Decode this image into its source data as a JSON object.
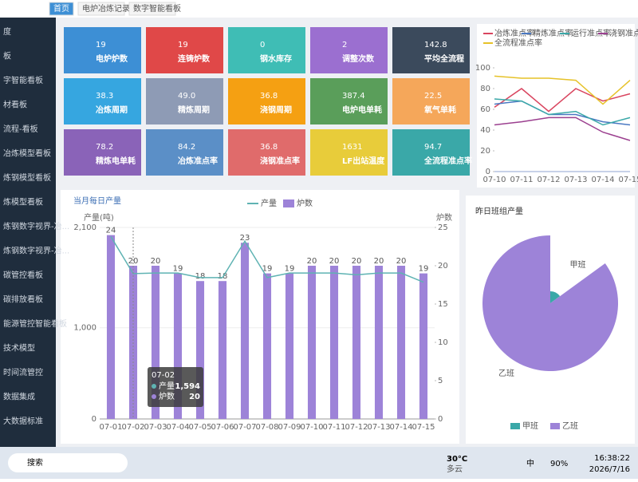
{
  "tabs": [
    "首页",
    "电炉冶炼记录",
    "数字智能看板"
  ],
  "sidebar": [
    "度",
    "板",
    "字智能看板",
    "材看板",
    "流程-看板",
    "冶炼模型看板",
    "炼钢模型看板",
    "炼模型看板",
    "炼钢数字视界-冶...",
    "炼钢数字视界-冶...",
    "碳管控看板",
    "碳排放看板",
    "能源管控智能看板",
    "技术模型",
    "时间流管控",
    "数据集成",
    "大数据标准"
  ],
  "kpis": [
    {
      "value": 19,
      "label": "电炉炉数",
      "color": "#3d8fd5"
    },
    {
      "value": 19,
      "label": "连铸炉数",
      "color": "#e04848"
    },
    {
      "value": 0,
      "label": "钢水库存",
      "color": "#3fbdb5"
    },
    {
      "value": 2,
      "label": "调整次数",
      "color": "#9b6fd0"
    },
    {
      "value": 142.8,
      "label": "平均全流程",
      "color": "#3b4a5c"
    },
    {
      "value": 38.3,
      "label": "冶炼周期",
      "color": "#36a6e0"
    },
    {
      "value": 49,
      "value_label": "49.0",
      "label": "精炼周期",
      "color": "#8e9bb5"
    },
    {
      "value": 36.8,
      "label": "浇钢周期",
      "color": "#f5a012"
    },
    {
      "value": 387.4,
      "label": "电炉电单耗",
      "color": "#5a9e5a"
    },
    {
      "value": 22.5,
      "label": "氧气单耗",
      "color": "#f5a75a"
    },
    {
      "value": 78.2,
      "label": "精炼电单耗",
      "color": "#8a63b8"
    },
    {
      "value": 84.2,
      "label": "冶炼准点率",
      "color": "#5b8fc7"
    },
    {
      "value": 36.8,
      "label": "浇钢准点率",
      "color": "#e06b6b"
    },
    {
      "value": 1631,
      "label": "LF出站温度",
      "color": "#e8cc3a"
    },
    {
      "value": 94.7,
      "label": "全流程准点率",
      "color": "#3aa8a8"
    }
  ],
  "chart_data": [
    {
      "type": "line",
      "categories": [
        "07-10",
        "07-11",
        "07-12",
        "07-13",
        "07-14",
        "07-15"
      ],
      "series": [
        {
          "name": "冶炼准点率",
          "color": "#d9455f",
          "values": [
            62,
            80,
            58,
            80,
            68,
            75
          ]
        },
        {
          "name": "精炼准点率",
          "color": "#4a78c2",
          "values": [
            65,
            68,
            55,
            55,
            48,
            45
          ]
        },
        {
          "name": "运行准点率",
          "color": "#3aa8a8",
          "values": [
            70,
            68,
            55,
            58,
            45,
            52
          ]
        },
        {
          "name": "浇钢准点率",
          "color": "#9b3f8f",
          "values": [
            45,
            48,
            52,
            52,
            38,
            30
          ]
        },
        {
          "name": "全流程准点率",
          "color": "#e6c229",
          "values": [
            92,
            90,
            90,
            88,
            65,
            88
          ]
        }
      ],
      "ylim": [
        0,
        100
      ],
      "yticks": [
        0,
        20,
        40,
        60,
        80,
        100
      ],
      "grid": false
    },
    {
      "type": "combo",
      "title": "当月每日产量",
      "categories": [
        "07-01",
        "07-02",
        "07-03",
        "07-04",
        "07-05",
        "07-06",
        "07-07",
        "07-08",
        "07-09",
        "07-10",
        "07-11",
        "07-12",
        "07-13",
        "07-14",
        "07-15"
      ],
      "series": [
        {
          "name": "产量",
          "type": "line",
          "color": "#5fb3b3",
          "values": [
            2000,
            1594,
            1600,
            1600,
            1550,
            1550,
            1950,
            1550,
            1600,
            1600,
            1600,
            1580,
            1600,
            1600,
            1500
          ]
        },
        {
          "name": "炉数",
          "type": "bar",
          "axis": "y2",
          "color": "#9d83d8",
          "values": [
            24,
            20,
            20,
            19,
            18,
            18,
            23,
            19,
            19,
            20,
            20,
            20,
            20,
            20,
            19
          ]
        }
      ],
      "ylabel": "产量(吨)",
      "y2label": "炉数",
      "ylim": [
        0,
        2100
      ],
      "yticks": [
        0,
        {
          "value": 1000,
          "label": "1,000"
        },
        {
          "value": 2100,
          "label": "2,100"
        }
      ],
      "y2lim": [
        0,
        25
      ],
      "y2ticks": [
        0,
        5,
        10,
        15,
        20,
        25
      ],
      "tooltip": {
        "title": "07-02",
        "rows": [
          {
            "name": "产量",
            "value": 1594,
            "value_label": "1,594"
          },
          {
            "name": "炉数",
            "value": 20
          }
        ]
      }
    },
    {
      "type": "pie",
      "title": "昨日班组产量",
      "rose": true,
      "categories": [
        "甲班",
        "乙班"
      ],
      "values": [
        15,
        85
      ],
      "colors": [
        "#3aa8a8",
        "#9d83d8"
      ]
    }
  ],
  "taskbar": {
    "search": "搜索",
    "weather_temp": "30°C",
    "weather_desc": "多云",
    "ime": "中",
    "battery": "90%",
    "time": "16:38:22",
    "date": "2026/7/16"
  }
}
